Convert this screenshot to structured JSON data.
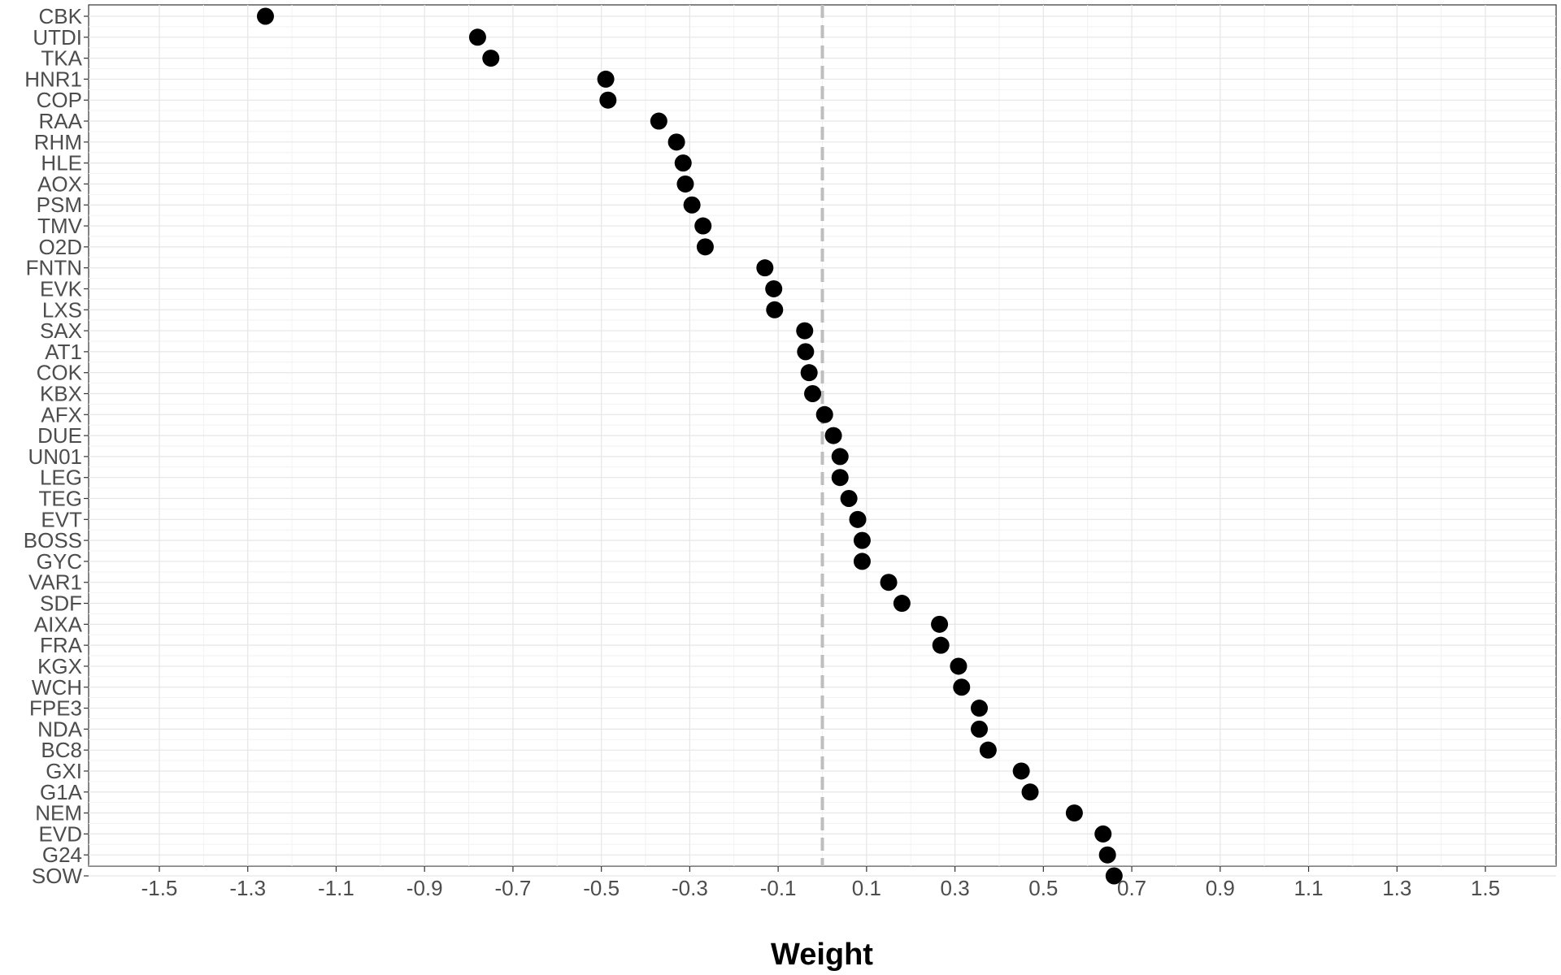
{
  "chart_data": {
    "type": "scatter",
    "xlabel": "Weight",
    "ylabel": "",
    "xlim": [
      -1.66,
      1.66
    ],
    "x_ticks": [
      -1.5,
      -1.3,
      -1.1,
      -0.9,
      -0.7,
      -0.5,
      -0.3,
      -0.1,
      0.1,
      0.3,
      0.5,
      0.7,
      0.9,
      1.1,
      1.3,
      1.5
    ],
    "x_tick_labels": [
      "-1.5",
      "-1.3",
      "-1.1",
      "-0.9",
      "-0.7",
      "-0.5",
      "-0.3",
      "-0.1",
      "0.1",
      "0.3",
      "0.5",
      "0.7",
      "0.9",
      "1.1",
      "1.3",
      "1.5"
    ],
    "reference_line": {
      "x": 0,
      "style": "dashed",
      "color": "#bebebe"
    },
    "grid": true,
    "point_color": "#000000",
    "categories": [
      "CBK",
      "UTDI",
      "TKA",
      "HNR1",
      "COP",
      "RAA",
      "RHM",
      "HLE",
      "AOX",
      "PSM",
      "TMV",
      "O2D",
      "FNTN",
      "EVK",
      "LXS",
      "SAX",
      "AT1",
      "COK",
      "KBX",
      "AFX",
      "DUE",
      "UN01",
      "LEG",
      "TEG",
      "EVT",
      "BOSS",
      "GYC",
      "VAR1",
      "SDF",
      "AIXA",
      "FRA",
      "KGX",
      "WCH",
      "FPE3",
      "NDA",
      "BC8",
      "GXI",
      "G1A",
      "NEM",
      "EVD",
      "G24",
      "SOW"
    ],
    "values": [
      -1.26,
      -0.78,
      -0.75,
      -0.49,
      -0.485,
      -0.37,
      -0.33,
      -0.315,
      -0.31,
      -0.295,
      -0.27,
      -0.265,
      -0.13,
      -0.11,
      -0.108,
      -0.04,
      -0.038,
      -0.03,
      -0.022,
      0.005,
      0.025,
      0.04,
      0.04,
      0.06,
      0.08,
      0.09,
      0.09,
      0.15,
      0.18,
      0.265,
      0.268,
      0.308,
      0.315,
      0.355,
      0.355,
      0.375,
      0.45,
      0.47,
      0.57,
      0.635,
      0.645,
      0.66
    ]
  }
}
